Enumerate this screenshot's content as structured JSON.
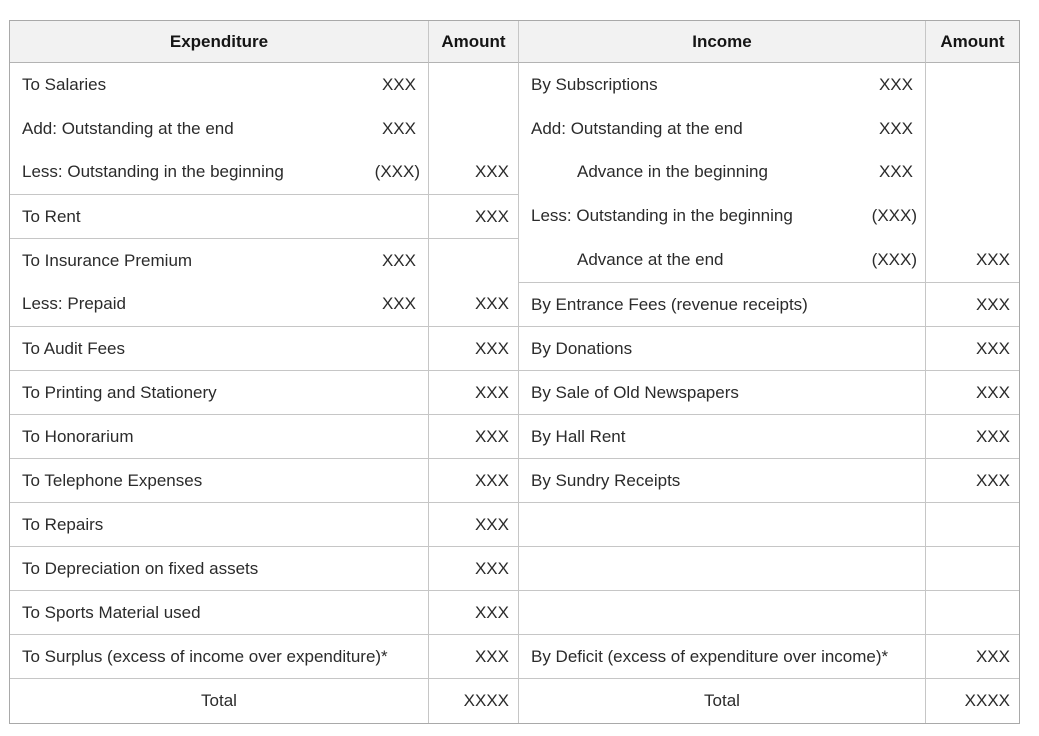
{
  "table": {
    "headers": {
      "expenditure": "Expenditure",
      "expenditure_amount": "Amount",
      "income": "Income",
      "income_amount": "Amount"
    },
    "expenditure": {
      "salaries_block": {
        "lines": [
          {
            "label": "To Salaries",
            "value": "XXX"
          },
          {
            "label": "Add: Outstanding at the end",
            "value": "XXX"
          },
          {
            "label": "Less: Outstanding in the beginning",
            "value": "(XXX)"
          }
        ],
        "amount": "XXX"
      },
      "rent": {
        "label": "To Rent",
        "amount": "XXX"
      },
      "insurance_block": {
        "lines": [
          {
            "label": "To Insurance Premium",
            "value": "XXX"
          },
          {
            "label": "Less: Prepaid",
            "value": "XXX"
          }
        ],
        "amount": "XXX"
      },
      "simple_rows": [
        {
          "label": "To Audit Fees",
          "amount": "XXX"
        },
        {
          "label": "To Printing and Stationery",
          "amount": "XXX"
        },
        {
          "label": "To Honorarium",
          "amount": "XXX"
        },
        {
          "label": "To Telephone Expenses",
          "amount": "XXX"
        },
        {
          "label": "To Repairs",
          "amount": "XXX"
        },
        {
          "label": "To Depreciation on fixed assets",
          "amount": "XXX"
        },
        {
          "label": "To Sports Material used",
          "amount": "XXX"
        },
        {
          "label": "To Surplus (excess of income over expenditure)*",
          "amount": "XXX"
        }
      ],
      "total": {
        "label": "Total",
        "amount": "XXXX"
      }
    },
    "income": {
      "subscriptions_block": {
        "lines": [
          {
            "label": "By Subscriptions",
            "value": "XXX"
          },
          {
            "label": "Add: Outstanding at the end",
            "value": "XXX"
          },
          {
            "label": "Advance in the beginning",
            "value": "XXX"
          },
          {
            "label": "Less: Outstanding in the beginning",
            "value": "(XXX)"
          },
          {
            "label": "Advance at the end",
            "value": "(XXX)"
          }
        ],
        "amount": "XXX"
      },
      "simple_rows": [
        {
          "label": "By Entrance Fees (revenue receipts)",
          "amount": "XXX"
        },
        {
          "label": "By Donations",
          "amount": "XXX"
        },
        {
          "label": "By Sale of Old Newspapers",
          "amount": "XXX"
        },
        {
          "label": "By Hall Rent",
          "amount": "XXX"
        },
        {
          "label": "By Sundry Receipts",
          "amount": "XXX"
        },
        {
          "label": "By Deficit (excess of expenditure over income)*",
          "amount": "XXX"
        }
      ],
      "total": {
        "label": "Total",
        "amount": "XXXX"
      }
    }
  }
}
